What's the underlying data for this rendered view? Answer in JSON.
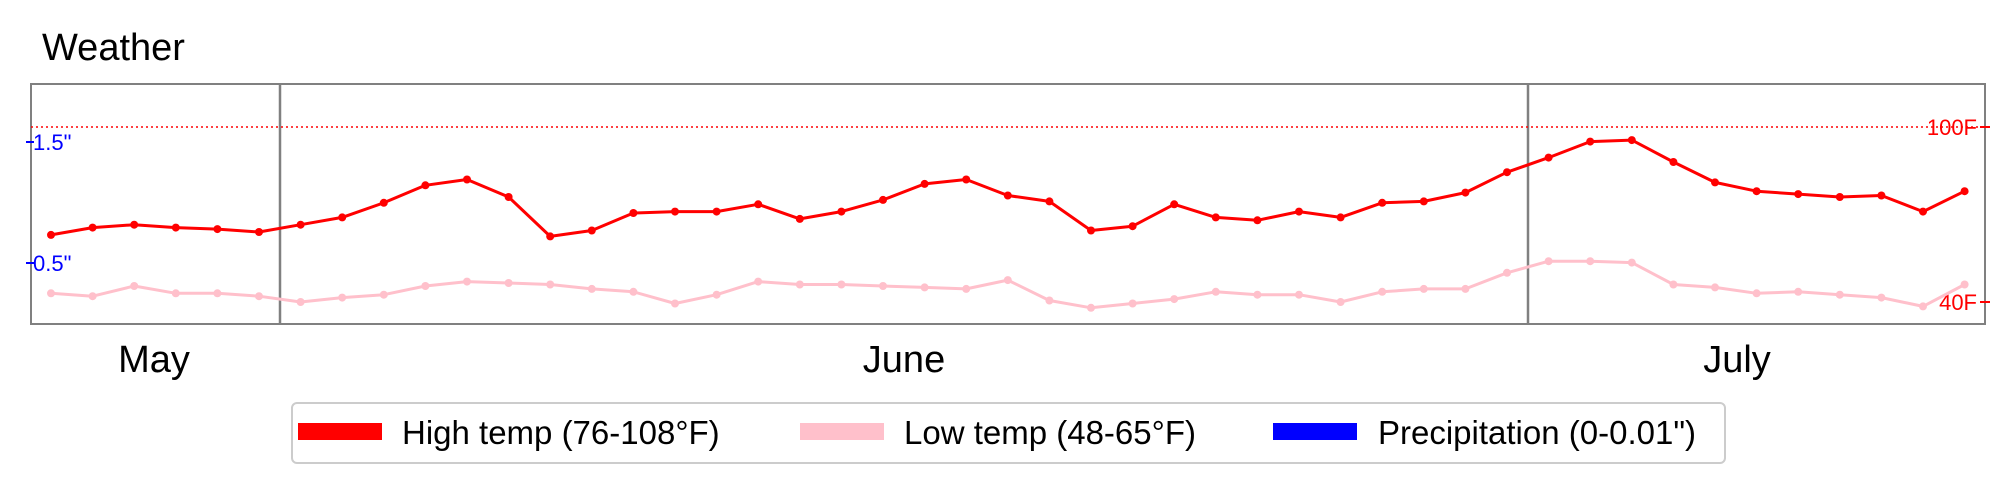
{
  "chart_data": {
    "type": "line",
    "title": "Weather",
    "months": [
      "May",
      "June",
      "July"
    ],
    "x_day_index_start": 0,
    "y_right": {
      "ticks": [
        "100F",
        "40F"
      ],
      "range_f": [
        40,
        123
      ],
      "reference_line_f": 100
    },
    "y_left": {
      "ticks": [
        "1.5\"",
        "0.5\""
      ]
    },
    "series": [
      {
        "name": "High temp (76-108°F)",
        "color": "#ff0000",
        "values": [
          63,
          65.5,
          66.5,
          65.5,
          65,
          64,
          66.5,
          69,
          74,
          80,
          82,
          76,
          62.5,
          64.5,
          70.5,
          71,
          71,
          73.5,
          68.5,
          71,
          75,
          80.5,
          82,
          76.5,
          74.5,
          64.5,
          66,
          73.5,
          69,
          68,
          71,
          69,
          74,
          74.5,
          77.5,
          84.5,
          89.5,
          95,
          95.5,
          88,
          81,
          78,
          77,
          76,
          76.5,
          71,
          78
        ]
      },
      {
        "name": "Low temp (48-65°F)",
        "color": "#ffc0cb",
        "values": [
          43,
          42,
          45.5,
          43,
          43,
          42,
          40,
          41.5,
          42.5,
          45.5,
          47,
          46.5,
          46,
          44.5,
          43.5,
          39.5,
          42.5,
          47,
          46,
          46,
          45.5,
          45,
          44.5,
          47.5,
          40.5,
          38,
          39.5,
          41,
          43.5,
          42.5,
          42.5,
          40,
          43.5,
          44.5,
          44.5,
          50,
          54,
          54,
          53.5,
          46,
          45,
          43,
          43.5,
          42.5,
          41.5,
          38.5,
          46
        ]
      },
      {
        "name": "Precipitation (0-0.01\")",
        "color": "#0000ff",
        "values": []
      }
    ]
  }
}
